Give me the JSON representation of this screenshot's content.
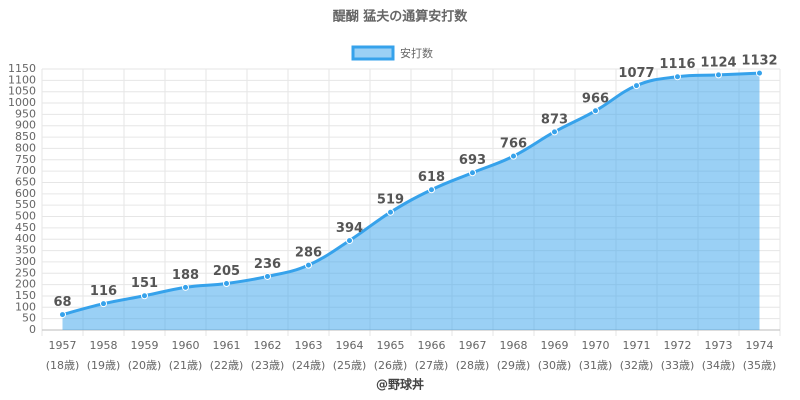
{
  "chart_data": {
    "type": "line",
    "title": "醍醐 猛夫の通算安打数",
    "footer": "@野球丼",
    "categories": [
      [
        "1957",
        "(18歳)"
      ],
      [
        "1958",
        "(19歳)"
      ],
      [
        "1959",
        "(20歳)"
      ],
      [
        "1960",
        "(21歳)"
      ],
      [
        "1961",
        "(22歳)"
      ],
      [
        "1962",
        "(23歳)"
      ],
      [
        "1963",
        "(24歳)"
      ],
      [
        "1964",
        "(25歳)"
      ],
      [
        "1965",
        "(26歳)"
      ],
      [
        "1966",
        "(27歳)"
      ],
      [
        "1967",
        "(28歳)"
      ],
      [
        "1968",
        "(29歳)"
      ],
      [
        "1969",
        "(30歳)"
      ],
      [
        "1970",
        "(31歳)"
      ],
      [
        "1971",
        "(32歳)"
      ],
      [
        "1972",
        "(33歳)"
      ],
      [
        "1973",
        "(34歳)"
      ],
      [
        "1974",
        "(35歳)"
      ]
    ],
    "series": [
      {
        "name": "安打数",
        "color": "#36a2eb",
        "fill": "rgba(54,162,235,0.5)",
        "values": [
          68,
          116,
          151,
          188,
          205,
          236,
          286,
          394,
          519,
          618,
          693,
          766,
          873,
          966,
          1077,
          1116,
          1124,
          1132
        ]
      }
    ],
    "ylim": [
      0,
      1150
    ],
    "yticks": [
      0,
      50,
      100,
      150,
      200,
      250,
      300,
      350,
      400,
      450,
      500,
      550,
      600,
      650,
      700,
      750,
      800,
      850,
      900,
      950,
      1000,
      1050,
      1100,
      1150
    ],
    "grid": true,
    "legend": "top",
    "data_labels": true
  }
}
